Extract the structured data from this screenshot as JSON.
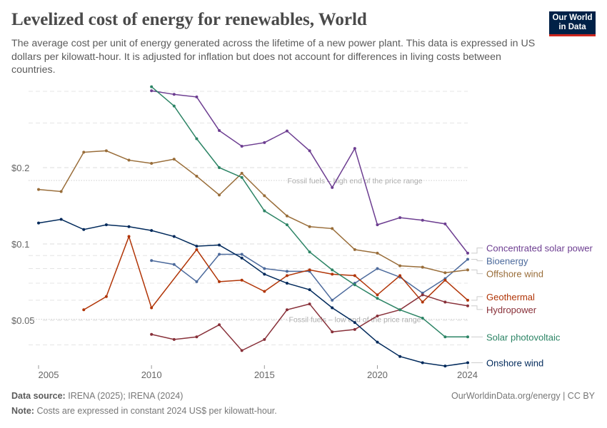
{
  "title": "Levelized cost of energy for renewables, World",
  "subtitle": "The average cost per unit of energy generated across the lifetime of a new power plant. This data is expressed in US dollars per kilowatt-hour. It is adjusted for inflation but does not account for differences in living costs between countries.",
  "logo": {
    "line1": "Our World",
    "line2": "in Data"
  },
  "footer": {
    "source_label": "Data source:",
    "source": "IRENA (2025); IRENA (2024)",
    "note_label": "Note:",
    "note": "Costs are expressed in constant 2024 US$ per kilowatt-hour.",
    "credit": "OurWorldinData.org/energy | CC BY"
  },
  "chart_data": {
    "type": "line",
    "y_scale": "log",
    "ylim": [
      0.032,
      0.42
    ],
    "xlim": [
      2005,
      2024
    ],
    "grid": true,
    "y_ticks": [
      {
        "value": 0.05,
        "label": "$0.05"
      },
      {
        "value": 0.1,
        "label": "$0.1"
      },
      {
        "value": 0.2,
        "label": "$0.2"
      }
    ],
    "y_minor_gridlines": [
      0.04,
      0.06,
      0.07,
      0.08,
      0.09,
      0.3,
      0.4
    ],
    "x_ticks": [
      2005,
      2010,
      2015,
      2020,
      2024
    ],
    "legend_placement": "right (line-end labels)",
    "reference_lines": [
      {
        "label": "Fossil fuels – high end of the price range",
        "value": 0.178
      },
      {
        "label": "Fossil fuels – low end of the price range",
        "value": 0.0505
      }
    ],
    "x": [
      2005,
      2006,
      2007,
      2008,
      2009,
      2010,
      2011,
      2012,
      2013,
      2014,
      2015,
      2016,
      2017,
      2018,
      2019,
      2020,
      2021,
      2022,
      2023,
      2024
    ],
    "series": [
      {
        "name": "Concentrated solar power",
        "color": "#6d3e91",
        "values": [
          null,
          null,
          null,
          null,
          null,
          0.402,
          0.389,
          0.38,
          0.28,
          0.243,
          0.251,
          0.279,
          0.233,
          0.167,
          0.238,
          0.119,
          0.127,
          0.124,
          0.12,
          0.092
        ]
      },
      {
        "name": "Bioenergy",
        "color": "#4c6a9c",
        "values": [
          null,
          null,
          null,
          null,
          null,
          0.086,
          0.083,
          0.071,
          0.091,
          0.091,
          0.08,
          0.078,
          0.078,
          0.06,
          0.07,
          0.08,
          0.074,
          0.064,
          0.073,
          0.087
        ]
      },
      {
        "name": "Offshore wind",
        "color": "#996d39",
        "values": [
          0.164,
          0.161,
          0.23,
          0.233,
          0.214,
          0.208,
          0.216,
          0.185,
          0.156,
          0.19,
          0.155,
          0.129,
          0.117,
          0.115,
          0.095,
          0.092,
          0.082,
          0.081,
          0.077,
          0.079
        ]
      },
      {
        "name": "Geothermal",
        "color": "#b13507",
        "values": [
          null,
          null,
          0.055,
          0.062,
          0.107,
          0.056,
          null,
          0.095,
          0.071,
          0.072,
          0.065,
          0.075,
          0.079,
          0.076,
          0.075,
          0.063,
          0.075,
          0.059,
          0.072,
          0.06
        ]
      },
      {
        "name": "Hydropower",
        "color": "#883039",
        "values": [
          null,
          null,
          null,
          null,
          null,
          0.044,
          0.042,
          0.043,
          0.048,
          0.038,
          0.042,
          0.055,
          0.058,
          0.045,
          0.046,
          0.052,
          0.055,
          0.063,
          0.059,
          0.057
        ]
      },
      {
        "name": "Solar photovoltaic",
        "color": "#2c8465",
        "values": [
          null,
          null,
          null,
          null,
          null,
          0.417,
          0.35,
          0.26,
          0.2,
          0.183,
          0.135,
          0.119,
          0.093,
          0.079,
          0.069,
          0.061,
          0.055,
          0.051,
          0.043,
          0.043
        ]
      },
      {
        "name": "Onshore wind",
        "color": "#00295b",
        "values": [
          0.121,
          0.125,
          0.114,
          0.119,
          0.117,
          0.113,
          0.107,
          0.098,
          0.099,
          0.088,
          0.076,
          0.07,
          0.066,
          0.056,
          0.049,
          0.041,
          0.036,
          0.034,
          0.033,
          0.034
        ]
      }
    ]
  }
}
